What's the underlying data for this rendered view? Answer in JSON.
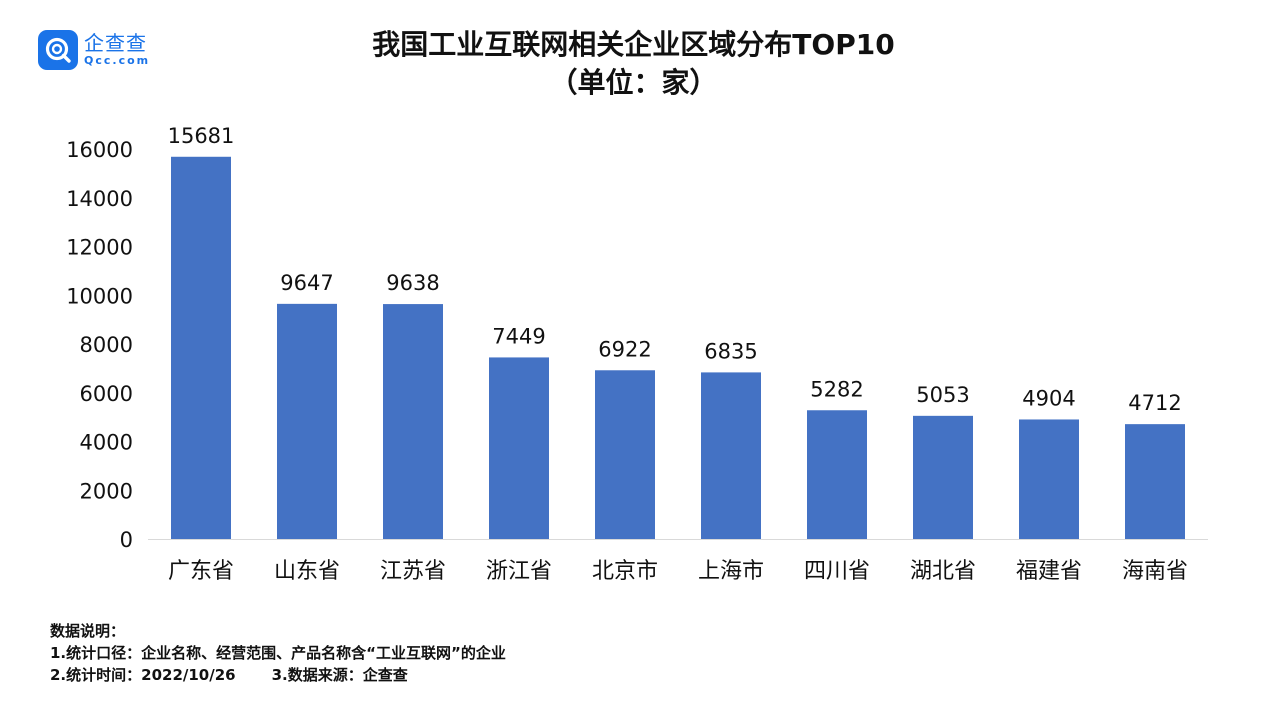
{
  "logo": {
    "name_cn": "企查查",
    "name_en": "Qcc.com"
  },
  "chart_data": {
    "type": "bar",
    "title": "我国工业互联网相关企业区域分布TOP10",
    "subtitle": "（单位：家）",
    "categories": [
      "广东省",
      "山东省",
      "江苏省",
      "浙江省",
      "北京市",
      "上海市",
      "四川省",
      "湖北省",
      "福建省",
      "海南省"
    ],
    "values": [
      15681,
      9647,
      9638,
      7449,
      6922,
      6835,
      5282,
      5053,
      4904,
      4712
    ],
    "ylim": [
      0,
      16000
    ],
    "yticks": [
      0,
      2000,
      4000,
      6000,
      8000,
      10000,
      12000,
      14000,
      16000
    ],
    "bar_color": "#4472c4",
    "grid": false,
    "data_labels": true
  },
  "notes": {
    "heading": "数据说明：",
    "line1": "1.统计口径：企业名称、经营范围、产品名称含“工业互联网”的企业",
    "line2a": "2.统计时间：2022/10/26",
    "line2b": "3.数据来源：企查查"
  }
}
